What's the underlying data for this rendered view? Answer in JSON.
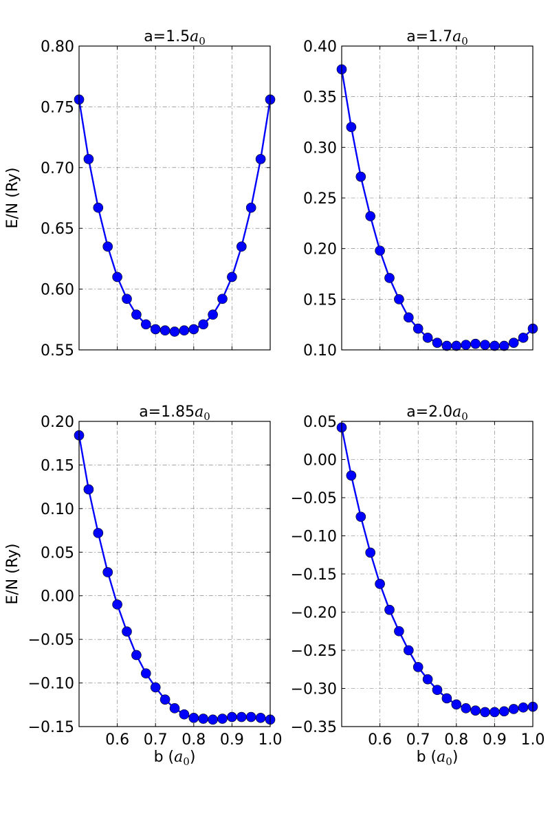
{
  "figure": {
    "ylabel": "E/N (Ry)",
    "xlabel_main": "b (",
    "xlabel_sym": "a",
    "xlabel_sub": "0",
    "xlabel_close": ")"
  },
  "chart_data": [
    {
      "type": "line",
      "title": "a=1.5a0",
      "title_main": "a=1.5",
      "title_sym": "a",
      "title_sub": "0",
      "xlabel": "",
      "ylabel": "E/N (Ry)",
      "xlim": [
        0.5,
        1.0
      ],
      "ylim": [
        0.55,
        0.8
      ],
      "xticks": [],
      "yticks": [
        "0.55",
        "0.60",
        "0.65",
        "0.70",
        "0.75",
        "0.80"
      ],
      "grid": true,
      "series": [
        {
          "name": "a=1.5a0",
          "color": "#0000ff",
          "x": [
            0.5,
            0.525,
            0.55,
            0.575,
            0.6,
            0.625,
            0.65,
            0.675,
            0.7,
            0.725,
            0.75,
            0.775,
            0.8,
            0.825,
            0.85,
            0.875,
            0.9,
            0.925,
            0.95,
            0.975,
            1.0
          ],
          "y": [
            0.756,
            0.707,
            0.667,
            0.635,
            0.61,
            0.592,
            0.579,
            0.571,
            0.567,
            0.566,
            0.565,
            0.566,
            0.567,
            0.571,
            0.579,
            0.592,
            0.61,
            0.635,
            0.667,
            0.707,
            0.756
          ]
        }
      ]
    },
    {
      "type": "line",
      "title": "a=1.7a0",
      "title_main": "a=1.7",
      "title_sym": "a",
      "title_sub": "0",
      "xlabel": "",
      "ylabel": "",
      "xlim": [
        0.5,
        1.0
      ],
      "ylim": [
        0.1,
        0.4
      ],
      "xticks": [],
      "yticks": [
        "0.10",
        "0.15",
        "0.20",
        "0.25",
        "0.30",
        "0.35",
        "0.40"
      ],
      "grid": true,
      "series": [
        {
          "name": "a=1.7a0",
          "color": "#0000ff",
          "x": [
            0.5,
            0.525,
            0.55,
            0.575,
            0.6,
            0.625,
            0.65,
            0.675,
            0.7,
            0.725,
            0.75,
            0.775,
            0.8,
            0.825,
            0.85,
            0.875,
            0.9,
            0.925,
            0.95,
            0.975,
            1.0
          ],
          "y": [
            0.377,
            0.32,
            0.271,
            0.232,
            0.198,
            0.171,
            0.15,
            0.132,
            0.121,
            0.112,
            0.107,
            0.104,
            0.104,
            0.105,
            0.106,
            0.105,
            0.104,
            0.104,
            0.107,
            0.112,
            0.121
          ]
        }
      ]
    },
    {
      "type": "line",
      "title": "a=1.85a0",
      "title_main": "a=1.85",
      "title_sym": "a",
      "title_sub": "0",
      "xlabel": "b (a0)",
      "ylabel": "E/N (Ry)",
      "xlim": [
        0.5,
        1.0
      ],
      "ylim": [
        -0.15,
        0.2
      ],
      "xticks": [
        "0.6",
        "0.7",
        "0.8",
        "0.9",
        "1.0"
      ],
      "yticks": [
        "−0.15",
        "−0.10",
        "−0.05",
        "0.00",
        "0.05",
        "0.10",
        "0.15",
        "0.20"
      ],
      "grid": true,
      "series": [
        {
          "name": "a=1.85a0",
          "color": "#0000ff",
          "x": [
            0.5,
            0.525,
            0.55,
            0.575,
            0.6,
            0.625,
            0.65,
            0.675,
            0.7,
            0.725,
            0.75,
            0.775,
            0.8,
            0.825,
            0.85,
            0.875,
            0.9,
            0.925,
            0.95,
            0.975,
            1.0
          ],
          "y": [
            0.184,
            0.122,
            0.072,
            0.027,
            -0.01,
            -0.041,
            -0.068,
            -0.089,
            -0.105,
            -0.119,
            -0.129,
            -0.136,
            -0.14,
            -0.141,
            -0.142,
            -0.141,
            -0.139,
            -0.139,
            -0.139,
            -0.14,
            -0.142
          ]
        }
      ]
    },
    {
      "type": "line",
      "title": "a=2.0a0",
      "title_main": "a=2.0",
      "title_sym": "a",
      "title_sub": "0",
      "xlabel": "b (a0)",
      "ylabel": "",
      "xlim": [
        0.5,
        1.0
      ],
      "ylim": [
        -0.35,
        0.05
      ],
      "xticks": [
        "0.6",
        "0.7",
        "0.8",
        "0.9",
        "1.0"
      ],
      "yticks": [
        "−0.35",
        "−0.30",
        "−0.25",
        "−0.20",
        "−0.15",
        "−0.10",
        "−0.05",
        "0.00",
        "0.05"
      ],
      "grid": true,
      "series": [
        {
          "name": "a=2.0a0",
          "color": "#0000ff",
          "x": [
            0.5,
            0.525,
            0.55,
            0.575,
            0.6,
            0.625,
            0.65,
            0.675,
            0.7,
            0.725,
            0.75,
            0.775,
            0.8,
            0.825,
            0.85,
            0.875,
            0.9,
            0.925,
            0.95,
            0.975,
            1.0
          ],
          "y": [
            0.042,
            -0.021,
            -0.075,
            -0.122,
            -0.163,
            -0.197,
            -0.225,
            -0.25,
            -0.272,
            -0.288,
            -0.302,
            -0.313,
            -0.321,
            -0.326,
            -0.329,
            -0.331,
            -0.331,
            -0.33,
            -0.327,
            -0.325,
            -0.324
          ]
        }
      ]
    }
  ]
}
